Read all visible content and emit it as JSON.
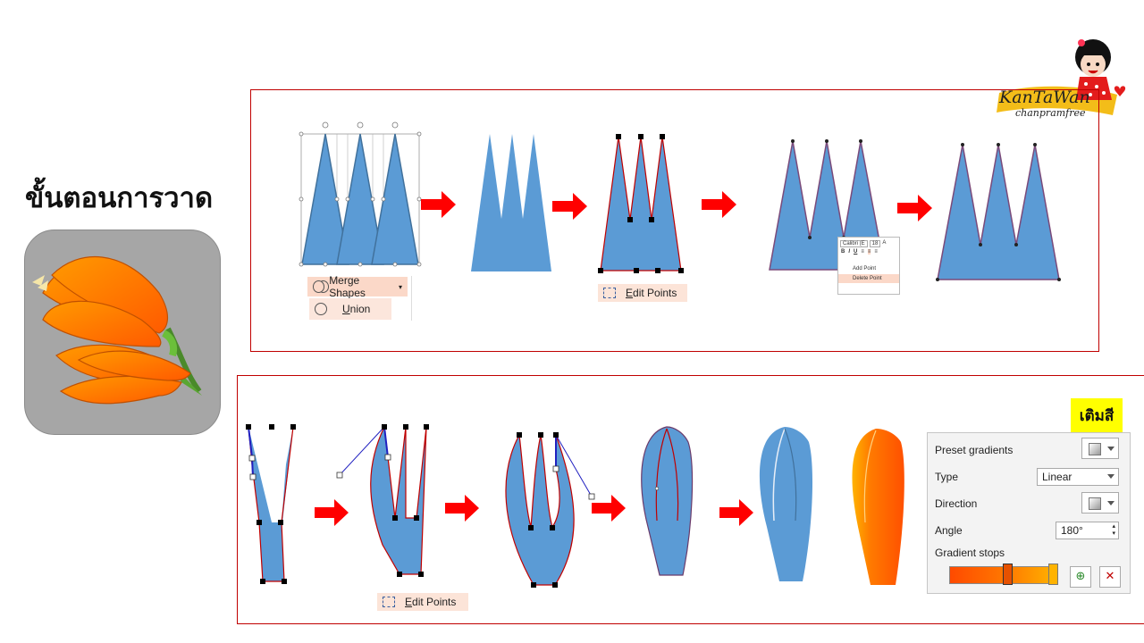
{
  "title": "ขั้นตอนการวาด",
  "logo": {
    "text": "KanTaWan",
    "subtext": "chanpramfree"
  },
  "merge_shapes": {
    "label": "Merge Shapes",
    "union": "Union"
  },
  "edit_points_top": "Edit Points",
  "edit_points_bottom": "Edit Points",
  "context_menu": {
    "font": "Calibri (E",
    "size": "18",
    "add_point": "Add Point",
    "delete_point": "Delete Point"
  },
  "fill_label": "เติมสี",
  "gradient_panel": {
    "preset_gradients": "Preset gradients",
    "type_label": "Type",
    "type_value": "Linear",
    "direction_label": "Direction",
    "angle_label": "Angle",
    "angle_value": "180°",
    "gradient_stops": "Gradient stops"
  },
  "colors": {
    "shape_blue": "#5b9bd5",
    "outline_red": "#c00000",
    "arrow_red": "#ff0000",
    "orange": "#ff6a00",
    "yellow_orange": "#ffb300"
  }
}
